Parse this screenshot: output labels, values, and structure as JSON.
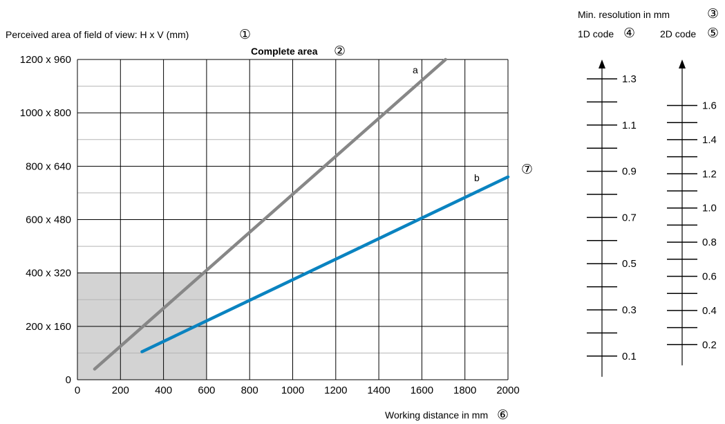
{
  "chart_data": {
    "type": "line",
    "y_axis_title": "Perceived area of field of view: H x V (mm)",
    "y_axis_title_marker": "①",
    "top_title": "Complete area",
    "top_title_marker": "②",
    "x_axis_title": "Working distance in mm",
    "x_axis_title_marker": "⑥",
    "x_ticks": [
      0,
      200,
      400,
      600,
      800,
      1000,
      1200,
      1400,
      1600,
      1800,
      2000
    ],
    "xlim": [
      0,
      2000
    ],
    "y_ticks": [
      {
        "value": 0,
        "label": "0"
      },
      {
        "value": 200,
        "label": "200 x 160"
      },
      {
        "value": 400,
        "label": "400 x 320"
      },
      {
        "value": 600,
        "label": "600 x 480"
      },
      {
        "value": 800,
        "label": "800 x 640"
      },
      {
        "value": 1000,
        "label": "1000 x 800"
      },
      {
        "value": 1200,
        "label": "1200 x 960"
      }
    ],
    "ylim": [
      0,
      1200
    ],
    "shaded_region": {
      "x": [
        0,
        600
      ],
      "y": [
        0,
        400
      ],
      "color": "#d3d3d3"
    },
    "series": [
      {
        "name": "a",
        "color": "#878787",
        "x": [
          80,
          1710
        ],
        "y": [
          40,
          1200
        ]
      },
      {
        "name": "b",
        "color": "#0a83c0",
        "x": [
          300,
          2000
        ],
        "y": [
          105,
          760
        ]
      }
    ],
    "series_b_marker": "⑦",
    "resolution_title": "Min. resolution in mm",
    "resolution_title_marker": "③",
    "scale_1d": {
      "label": "1D code",
      "marker": "④",
      "ticks": [
        "1.3",
        "",
        "1.1",
        "",
        "0.9",
        "",
        "0.7",
        "",
        "0.5",
        "",
        "0.3",
        "",
        "0.1"
      ]
    },
    "scale_2d": {
      "label": "2D code",
      "marker": "⑤",
      "ticks": [
        "1.6",
        "",
        "1.4",
        "",
        "1.2",
        "",
        "1.0",
        "",
        "0.8",
        "",
        "0.6",
        "",
        "0.4",
        "",
        "0.2"
      ]
    }
  }
}
